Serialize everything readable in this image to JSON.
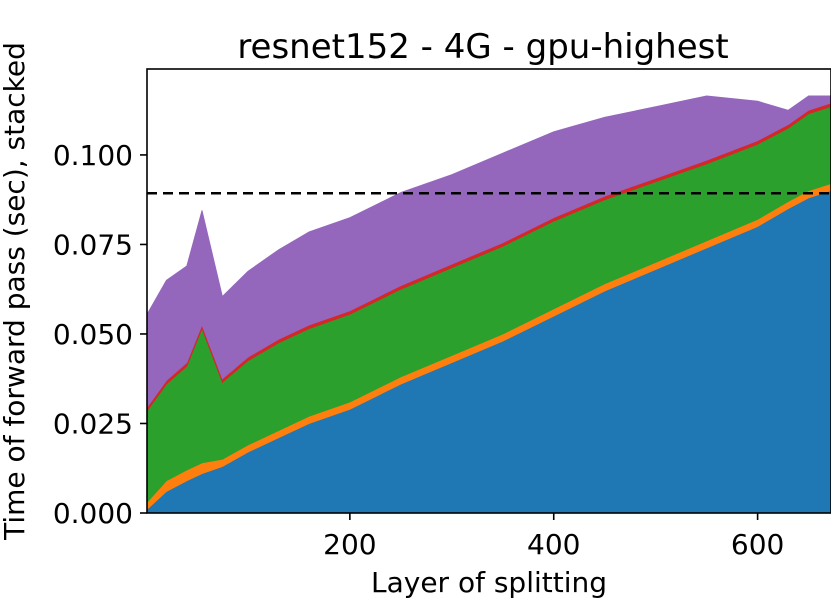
{
  "chart_data": {
    "type": "area",
    "stacked": true,
    "title": "resnet152  -  4G  -  gpu-highest",
    "xlabel": "Layer of splitting",
    "ylabel": "Time of forward pass (sec), stacked",
    "xlim": [
      1,
      672
    ],
    "ylim": [
      0,
      0.124
    ],
    "xticks": [
      200,
      400,
      600
    ],
    "xtick_labels": [
      "200",
      "400",
      "600"
    ],
    "yticks": [
      0.0,
      0.025,
      0.05,
      0.075,
      0.1
    ],
    "ytick_labels": [
      "0.000",
      "0.025",
      "0.050",
      "0.075",
      "0.100"
    ],
    "grid": false,
    "reference_line": {
      "y": 0.0893,
      "style": "dashed",
      "color": "#000000"
    },
    "x": [
      1,
      20,
      40,
      55,
      75,
      100,
      130,
      160,
      200,
      250,
      300,
      350,
      400,
      450,
      500,
      550,
      600,
      630,
      650,
      672
    ],
    "series": [
      {
        "color": "#1f77b4",
        "values": [
          0.001,
          0.006,
          0.009,
          0.011,
          0.013,
          0.017,
          0.021,
          0.025,
          0.029,
          0.036,
          0.042,
          0.048,
          0.055,
          0.062,
          0.068,
          0.074,
          0.08,
          0.085,
          0.088,
          0.09
        ]
      },
      {
        "color": "#ff7f0e",
        "values": [
          0.002,
          0.003,
          0.003,
          0.003,
          0.002,
          0.002,
          0.002,
          0.002,
          0.002,
          0.002,
          0.002,
          0.002,
          0.002,
          0.002,
          0.002,
          0.002,
          0.002,
          0.002,
          0.002,
          0.002
        ]
      },
      {
        "color": "#2ca02c",
        "values": [
          0.0255,
          0.027,
          0.029,
          0.0375,
          0.0215,
          0.0235,
          0.0245,
          0.0245,
          0.0245,
          0.0245,
          0.0245,
          0.0245,
          0.0245,
          0.0235,
          0.0225,
          0.0215,
          0.021,
          0.0205,
          0.0215,
          0.0215
        ]
      },
      {
        "color": "#d62728",
        "values": [
          0.001,
          0.001,
          0.001,
          0.001,
          0.001,
          0.001,
          0.001,
          0.001,
          0.001,
          0.001,
          0.001,
          0.001,
          0.001,
          0.001,
          0.001,
          0.001,
          0.001,
          0.001,
          0.001,
          0.001
        ]
      },
      {
        "color": "#9467bd",
        "values": [
          0.026,
          0.028,
          0.027,
          0.032,
          0.023,
          0.024,
          0.025,
          0.026,
          0.026,
          0.026,
          0.025,
          0.025,
          0.024,
          0.022,
          0.02,
          0.018,
          0.011,
          0.004,
          0.004,
          0.002
        ]
      }
    ]
  }
}
